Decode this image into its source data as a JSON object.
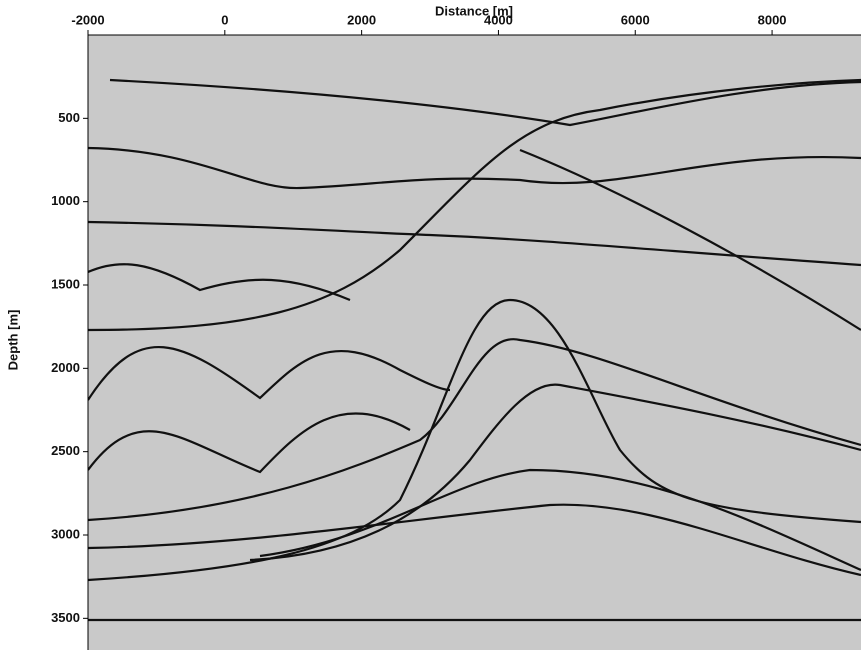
{
  "chart_data": {
    "type": "image",
    "xlabel": "Distance [m]",
    "ylabel": "Depth [m]",
    "xlim": [
      -2000,
      9300
    ],
    "xticks": [
      -2000,
      0,
      2000,
      4000,
      6000,
      8000
    ],
    "ylim": [
      0,
      3690
    ],
    "yticks": [
      500,
      1000,
      1500,
      2000,
      2500,
      3000,
      3500
    ],
    "y_inverted": true,
    "x_axis_position": "top",
    "background": "#c9c9c9"
  }
}
